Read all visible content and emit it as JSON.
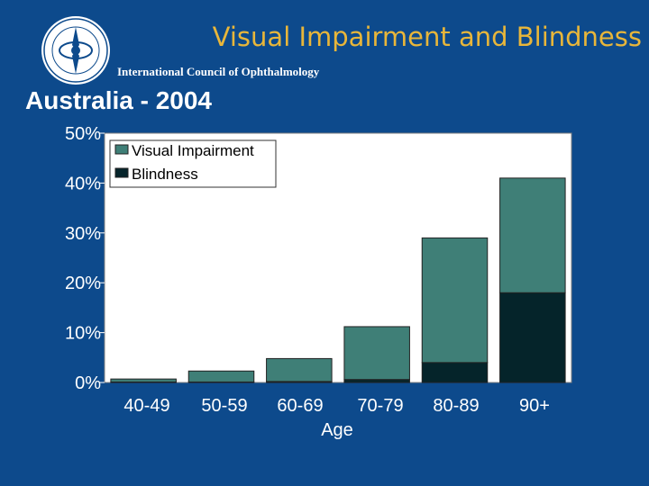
{
  "header": {
    "title": "Visual Impairment and Blindness",
    "org": "International Council of Ophthalmology",
    "logo_icon": "ico-seal-logo"
  },
  "slide_title": "Australia - 2004",
  "colors": {
    "background": "#0d4a8c",
    "title": "#e8b63a",
    "visual_impairment": "#3f7f77",
    "blindness": "#05242a",
    "plot_bg": "#ffffff"
  },
  "chart_data": {
    "type": "bar",
    "stacked": true,
    "categories": [
      "40-49",
      "50-59",
      "60-69",
      "70-79",
      "80-89",
      "90+"
    ],
    "series": [
      {
        "name": "Blindness",
        "values": [
          0.1,
          0.1,
          0.2,
          0.6,
          4.0,
          18.0
        ]
      },
      {
        "name": "Visual Impairment",
        "values": [
          0.6,
          2.2,
          4.6,
          10.6,
          25.0,
          23.0
        ]
      }
    ],
    "xlabel": "Age",
    "ylabel": "",
    "ylim": [
      0,
      50
    ],
    "yticks": [
      "0%",
      "10%",
      "20%",
      "30%",
      "40%",
      "50%"
    ],
    "legend": {
      "placement": "top-left",
      "entries": [
        "Visual Impairment",
        "Blindness"
      ]
    },
    "grid": false
  }
}
